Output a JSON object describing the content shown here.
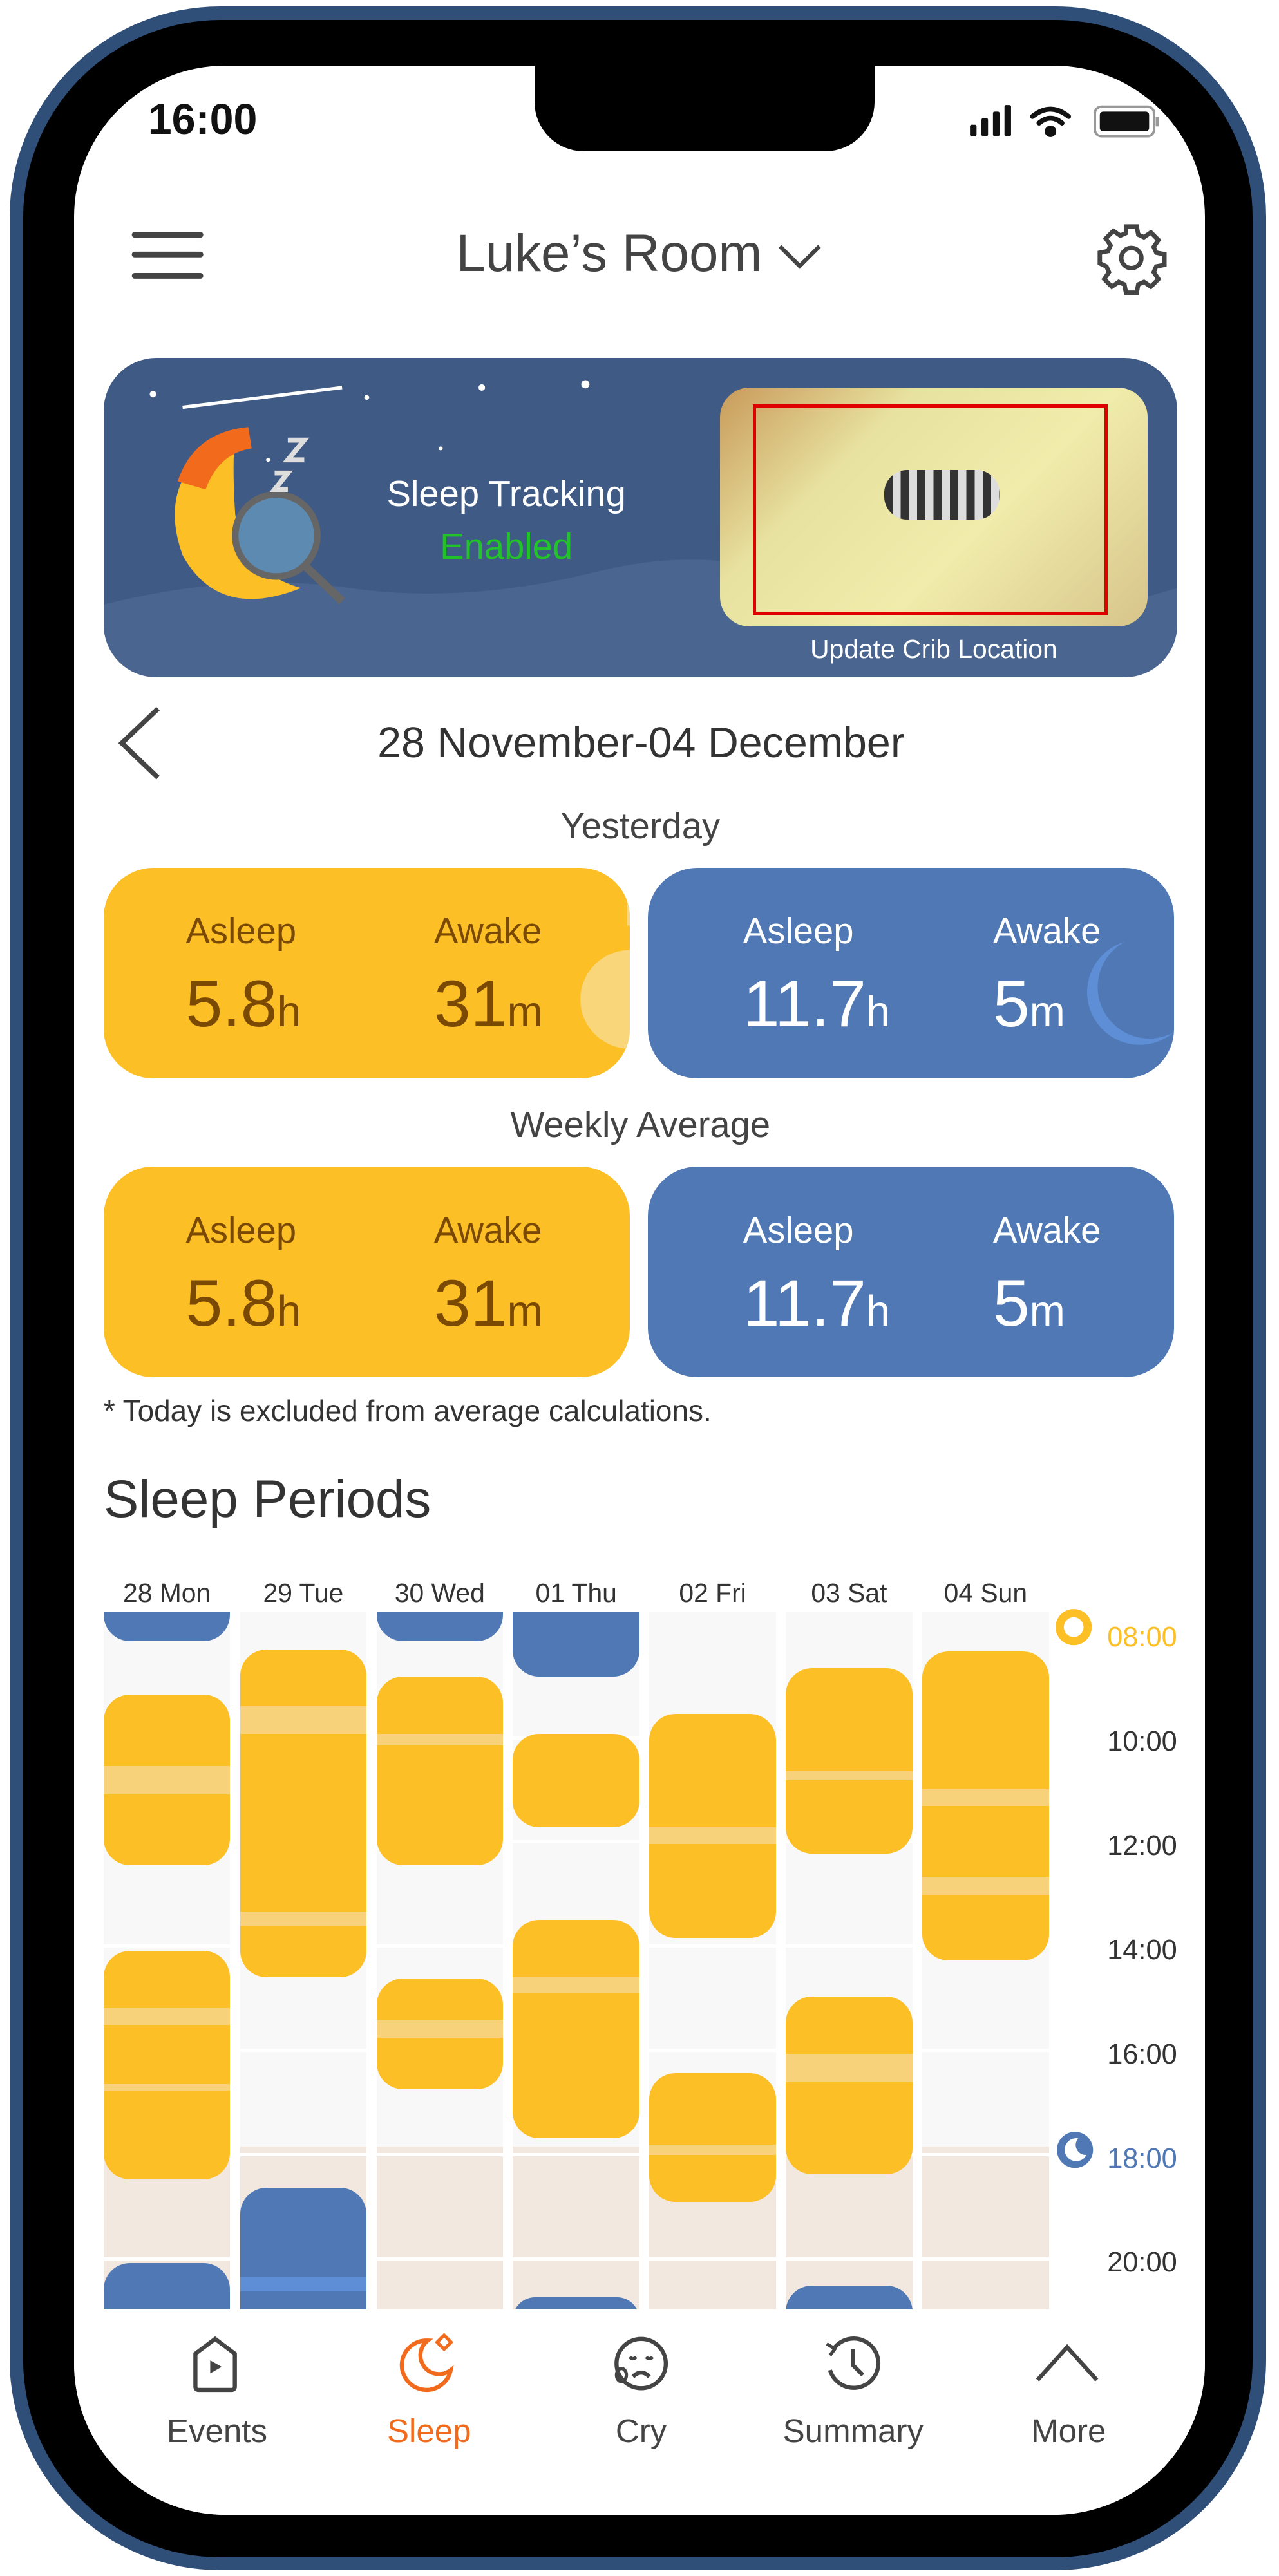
{
  "status_bar": {
    "time": "16:00",
    "icons": [
      "signal-icon",
      "wifi-icon",
      "battery-icon"
    ]
  },
  "header": {
    "title": "Luke’s Room",
    "menu_icon": "hamburger-icon",
    "settings_icon": "gear-icon"
  },
  "banner": {
    "title": "Sleep Tracking",
    "status": "Enabled",
    "status_color": "#22c22a",
    "crib_button": "Update Crib Location"
  },
  "date_range": "28 November-04 December",
  "yesterday": {
    "label": "Yesterday",
    "day": {
      "asleep_label": "Asleep",
      "asleep_value": "5.8",
      "asleep_unit": "h",
      "awake_label": "Awake",
      "awake_value": "31",
      "awake_unit": "m"
    },
    "night": {
      "asleep_label": "Asleep",
      "asleep_value": "11.7",
      "asleep_unit": "h",
      "awake_label": "Awake",
      "awake_value": "5",
      "awake_unit": "m"
    }
  },
  "weekly": {
    "label": "Weekly Average",
    "day": {
      "asleep_label": "Asleep",
      "asleep_value": "5.8",
      "asleep_unit": "h",
      "awake_label": "Awake",
      "awake_value": "31",
      "awake_unit": "m"
    },
    "night": {
      "asleep_label": "Asleep",
      "asleep_value": "11.7",
      "asleep_unit": "h",
      "awake_label": "Awake",
      "awake_value": "5",
      "awake_unit": "m"
    }
  },
  "footnote": "* Today is excluded from average calculations.",
  "sleep_periods_title": "Sleep Periods",
  "colors": {
    "day": "#fdbf26",
    "night": "#4f78b4",
    "awake_day": "#f7d27b",
    "awake_night": "#5e8fd6",
    "evening_bg": "#f2e8df",
    "accent": "#f26a1b"
  },
  "chart_data": {
    "type": "timeline",
    "categories": [
      "28 Mon",
      "29 Tue",
      "30 Wed",
      "01 Thu",
      "02 Fri",
      "03 Sat",
      "04 Sun"
    ],
    "y_ticks": [
      "08:00",
      "10:00",
      "12:00",
      "14:00",
      "16:00",
      "18:00",
      "20:00"
    ],
    "y_tick_hours": [
      8,
      10,
      12,
      14,
      16,
      18,
      20
    ],
    "ylim_hours": [
      7.75,
      21.12
    ],
    "day_start_hour": 8,
    "night_start_hour": 18,
    "periods": [
      [
        {
          "type": "night",
          "start": 6,
          "end": 8.3
        },
        {
          "type": "day",
          "start": 9.33,
          "end": 12.6,
          "awake": [
            [
              10.7,
              11.25
            ]
          ]
        },
        {
          "type": "day",
          "start": 14.25,
          "end": 18.63,
          "awake": [
            [
              15.35,
              15.67
            ],
            [
              16.8,
              16.93
            ]
          ]
        },
        {
          "type": "night",
          "start": 20.24,
          "end": 23
        }
      ],
      [
        {
          "type": "day",
          "start": 8.47,
          "end": 14.75,
          "awake": [
            [
              9.55,
              10.08
            ],
            [
              13.5,
              13.77
            ]
          ]
        },
        {
          "type": "night",
          "start": 18.8,
          "end": 23,
          "awake": [
            [
              20.5,
              20.78
            ]
          ]
        }
      ],
      [
        {
          "type": "night",
          "start": 6,
          "end": 8.3
        },
        {
          "type": "day",
          "start": 8.98,
          "end": 12.6,
          "awake": [
            [
              10.08,
              10.3
            ]
          ]
        },
        {
          "type": "day",
          "start": 14.78,
          "end": 16.9,
          "awake": [
            [
              15.57,
              15.92
            ]
          ]
        }
      ],
      [
        {
          "type": "night",
          "start": 6,
          "end": 8.98
        },
        {
          "type": "day",
          "start": 10.08,
          "end": 11.88
        },
        {
          "type": "day",
          "start": 13.65,
          "end": 17.85,
          "awake": [
            [
              14.75,
              15.07
            ]
          ]
        },
        {
          "type": "night",
          "start": 20.9,
          "end": 23
        }
      ],
      [
        {
          "type": "day",
          "start": 9.7,
          "end": 14.0,
          "awake": [
            [
              11.88,
              12.2
            ]
          ]
        },
        {
          "type": "day",
          "start": 16.6,
          "end": 19.07,
          "awake": [
            [
              17.97,
              18.16
            ]
          ]
        }
      ],
      [
        {
          "type": "day",
          "start": 8.82,
          "end": 12.38,
          "awake": [
            [
              10.8,
              10.97
            ]
          ]
        },
        {
          "type": "day",
          "start": 15.13,
          "end": 18.54,
          "awake": [
            [
              16.23,
              16.77
            ]
          ]
        },
        {
          "type": "night",
          "start": 20.68,
          "end": 23
        }
      ],
      [
        {
          "type": "day",
          "start": 8.5,
          "end": 14.43,
          "awake": [
            [
              11.15,
              11.47
            ],
            [
              12.83,
              13.17
            ]
          ]
        }
      ]
    ]
  },
  "nav": [
    {
      "label": "Events",
      "icon": "video-home-icon",
      "active": false
    },
    {
      "label": "Sleep",
      "icon": "moon-icon",
      "active": true
    },
    {
      "label": "Cry",
      "icon": "crying-face-icon",
      "active": false
    },
    {
      "label": "Summary",
      "icon": "history-clock-icon",
      "active": false
    },
    {
      "label": "More",
      "icon": "chevron-up-icon",
      "active": false
    }
  ]
}
